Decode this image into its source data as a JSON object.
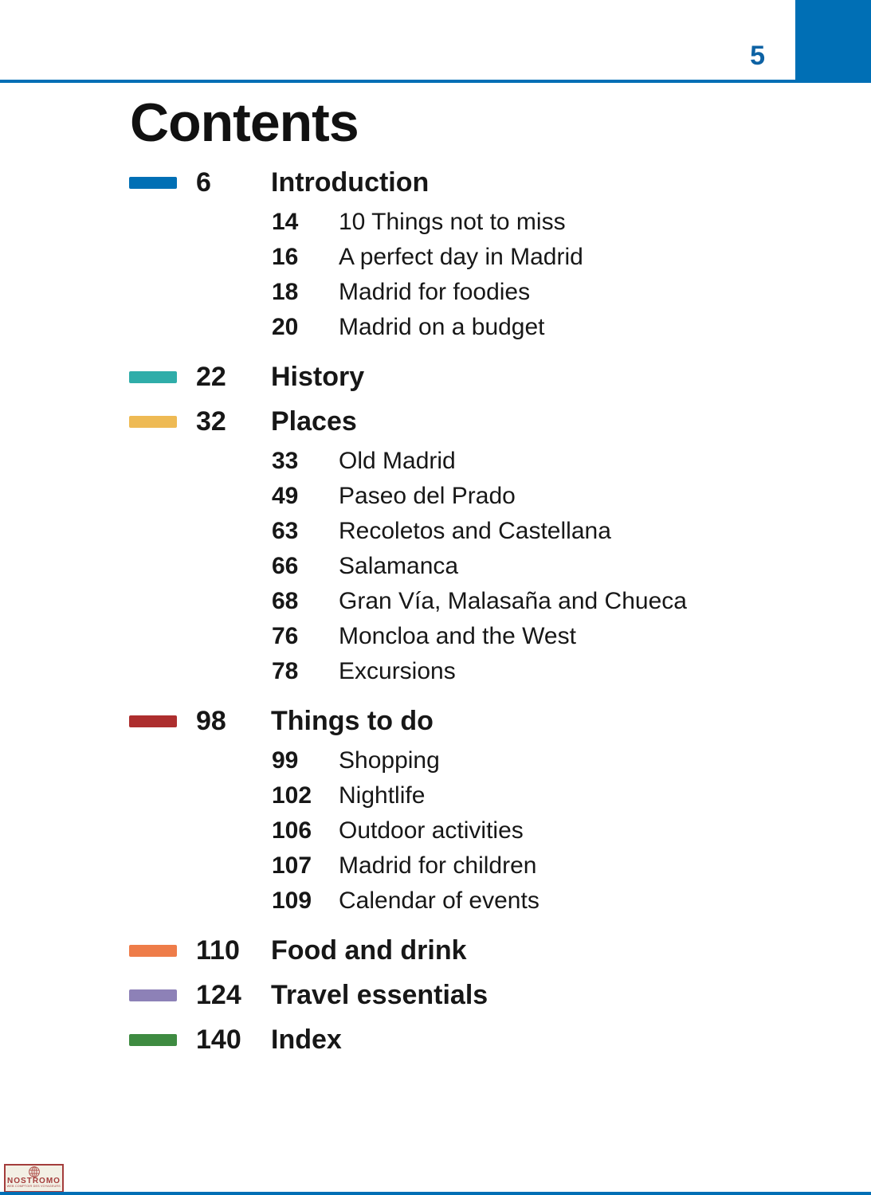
{
  "page": {
    "number": "5",
    "title": "Contents"
  },
  "colors": {
    "accent": "#006fb5",
    "page_number": "#0d62a4",
    "text": "#171717",
    "logo_fg": "#a43d3c",
    "logo_bg": "#f3f0e5"
  },
  "toc": {
    "sections": [
      {
        "page": "6",
        "title": "Introduction",
        "color": "#006fb5",
        "subs": [
          {
            "page": "14",
            "title": "10 Things not to miss"
          },
          {
            "page": "16",
            "title": "A perfect day in Madrid"
          },
          {
            "page": "18",
            "title": "Madrid for foodies"
          },
          {
            "page": "20",
            "title": "Madrid on a budget"
          }
        ]
      },
      {
        "page": "22",
        "title": "History",
        "color": "#2fada9",
        "subs": []
      },
      {
        "page": "32",
        "title": "Places",
        "color": "#eeba54",
        "subs": [
          {
            "page": "33",
            "title": "Old Madrid"
          },
          {
            "page": "49",
            "title": "Paseo del Prado"
          },
          {
            "page": "63",
            "title": "Recoletos and Castellana"
          },
          {
            "page": "66",
            "title": "Salamanca"
          },
          {
            "page": "68",
            "title": "Gran Vía, Malasaña and Chueca"
          },
          {
            "page": "76",
            "title": "Moncloa and the West"
          },
          {
            "page": "78",
            "title": "Excursions"
          }
        ]
      },
      {
        "page": "98",
        "title": "Things to do",
        "color": "#ad2e2e",
        "subs": [
          {
            "page": "99",
            "title": "Shopping"
          },
          {
            "page": "102",
            "title": "Nightlife"
          },
          {
            "page": "106",
            "title": "Outdoor activities"
          },
          {
            "page": "107",
            "title": "Madrid for children"
          },
          {
            "page": "109",
            "title": "Calendar of events"
          }
        ]
      },
      {
        "page": "110",
        "title": "Food and drink",
        "color": "#ee7c49",
        "subs": []
      },
      {
        "page": "124",
        "title": "Travel essentials",
        "color": "#8d81b7",
        "subs": []
      },
      {
        "page": "140",
        "title": "Index",
        "color": "#3e8b41",
        "subs": []
      }
    ]
  },
  "watermark": {
    "name": "NOSTROMO",
    "tagline": "WEB COMPTOIR DES VOYAGEURS"
  }
}
